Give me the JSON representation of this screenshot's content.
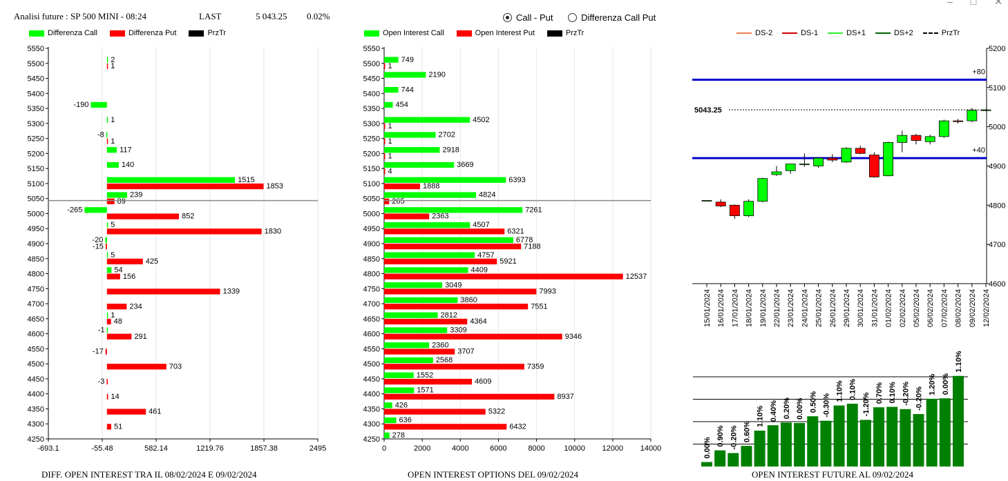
{
  "header": {
    "instrument": "Analisi future : SP 500 MINI - 08:24",
    "last_label": "LAST",
    "last_value": "5 043.25",
    "change": "0.02%"
  },
  "radio": {
    "options": [
      "Call - Put",
      "Differenza Call Put"
    ],
    "selected": "Call - Put"
  },
  "colors": {
    "call": "#00ff00",
    "put": "#ff0000",
    "przTr": "#000000",
    "oi_bar": "#008000",
    "ds_m2": "#f08050",
    "ds_m1": "#cc0000",
    "ds_p1": "#33ee33",
    "ds_p2": "#006400",
    "level_line": "#0000cc"
  },
  "legends": {
    "left": [
      "Differenza Call",
      "Differenza Put",
      "PrzTr"
    ],
    "middle": [
      "Open Interest Call",
      "Open Interest Put",
      "PrzTr"
    ],
    "right": [
      "DS-2",
      "DS-1",
      "DS+1",
      "DS+2",
      "PrzTr"
    ]
  },
  "captions": {
    "left": "DIFF. OPEN INTEREST TRA IL 08/02/2024 E 09/02/2024",
    "middle": "OPEN INTEREST OPTIONS DEL 09/02/2024",
    "right": "OPEN INTEREST FUTURE AL 09/02/2024"
  },
  "chart_data": [
    {
      "type": "bar",
      "orientation": "horizontal",
      "strikes": [
        5550,
        5500,
        5450,
        5400,
        5350,
        5300,
        5250,
        5200,
        5150,
        5100,
        5050,
        5000,
        4950,
        4900,
        4850,
        4800,
        4750,
        4700,
        4650,
        4600,
        4550,
        4500,
        4450,
        4400,
        4350,
        4300,
        4250
      ],
      "series": [
        {
          "name": "Differenza Call",
          "values": [
            null,
            2,
            null,
            null,
            -190,
            1,
            -8,
            117,
            140,
            1515,
            239,
            -265,
            5,
            -20,
            5,
            54,
            null,
            null,
            1,
            -1,
            null,
            null,
            null,
            null,
            null,
            null,
            null
          ]
        },
        {
          "name": "Differenza Put",
          "values": [
            null,
            1,
            null,
            null,
            null,
            null,
            1,
            null,
            null,
            1853,
            89,
            852,
            1830,
            -15,
            425,
            156,
            1339,
            234,
            48,
            291,
            -17,
            703,
            -3,
            14,
            461,
            51,
            null
          ]
        }
      ],
      "price_line": 5043.25,
      "xlim": [
        -693.1,
        2495
      ],
      "xticks": [
        "-693.1",
        "-55.48",
        "582.14",
        "1219.76",
        "1857.38",
        "2495"
      ],
      "ylim": [
        4250,
        5550
      ]
    },
    {
      "type": "bar",
      "orientation": "horizontal",
      "strikes": [
        5550,
        5500,
        5450,
        5400,
        5350,
        5300,
        5250,
        5200,
        5150,
        5100,
        5050,
        5000,
        4950,
        4900,
        4850,
        4800,
        4750,
        4700,
        4650,
        4600,
        4550,
        4500,
        4450,
        4400,
        4350,
        4300,
        4250
      ],
      "series": [
        {
          "name": "Open Interest Call",
          "values": [
            null,
            749,
            2190,
            744,
            454,
            4502,
            2702,
            2918,
            3669,
            6393,
            4824,
            7261,
            4507,
            6778,
            4757,
            4409,
            3049,
            3860,
            2812,
            3309,
            2360,
            2568,
            1552,
            1571,
            426,
            636,
            278
          ]
        },
        {
          "name": "Open Interest Put",
          "values": [
            null,
            1,
            null,
            null,
            null,
            1,
            1,
            1,
            4,
            1888,
            265,
            2363,
            6321,
            7188,
            5921,
            12537,
            7993,
            7551,
            4364,
            9346,
            3707,
            7359,
            4609,
            8937,
            5322,
            6432,
            null
          ]
        }
      ],
      "price_line": 5043.25,
      "xlim": [
        0,
        14000
      ],
      "xticks": [
        "0",
        "2000",
        "4000",
        "6000",
        "8000",
        "10000",
        "12000",
        "14000"
      ],
      "ylim": [
        4250,
        5550
      ]
    },
    {
      "type": "candlestick",
      "dates": [
        "15/01/2024",
        "16/01/2024",
        "17/01/2024",
        "18/01/2024",
        "19/01/2024",
        "22/01/2024",
        "23/01/2024",
        "24/01/2024",
        "25/01/2024",
        "26/01/2024",
        "29/01/2024",
        "30/01/2024",
        "31/01/2024",
        "01/02/2024",
        "02/02/2024",
        "05/02/2024",
        "06/02/2024",
        "07/02/2024",
        "08/02/2024",
        "09/02/2024",
        "12/02/2024"
      ],
      "ohlc": [
        [
          4812,
          4812,
          4812,
          4812
        ],
        [
          4808,
          4815,
          4795,
          4798
        ],
        [
          4800,
          4802,
          4765,
          4773
        ],
        [
          4773,
          4815,
          4770,
          4810
        ],
        [
          4810,
          4870,
          4807,
          4868
        ],
        [
          4878,
          4900,
          4875,
          4885
        ],
        [
          4888,
          4905,
          4880,
          4905
        ],
        [
          4905,
          4932,
          4898,
          4905
        ],
        [
          4900,
          4922,
          4895,
          4920
        ],
        [
          4920,
          4930,
          4910,
          4915
        ],
        [
          4910,
          4948,
          4908,
          4945
        ],
        [
          4945,
          4952,
          4930,
          4932
        ],
        [
          4928,
          4935,
          4870,
          4872
        ],
        [
          4875,
          4962,
          4874,
          4960
        ],
        [
          4960,
          4990,
          4935,
          4978
        ],
        [
          4978,
          4982,
          4955,
          4965
        ],
        [
          4962,
          4980,
          4955,
          4975
        ],
        [
          4975,
          5018,
          4972,
          5015
        ],
        [
          5015,
          5020,
          5008,
          5013
        ],
        [
          5015,
          5048,
          5012,
          5042
        ],
        [
          5043,
          5045,
          5040,
          5043
        ]
      ],
      "price_line": 5043.25,
      "price_label": "5043.25",
      "levels": [
        {
          "value": 5120,
          "label": "+80"
        },
        {
          "value": 4920,
          "label": "+40"
        }
      ],
      "ylim": [
        4600,
        5200
      ],
      "yticks": [
        "5200",
        "5100",
        "5000",
        "4900",
        "4800",
        "4700",
        "4600"
      ]
    },
    {
      "type": "bar",
      "title": "",
      "values": [
        1.0,
        3.6,
        3.0,
        4.6,
        8.0,
        9.2,
        9.8,
        9.7,
        11.2,
        10.2,
        13.6,
        14.0,
        10.4,
        13.2,
        13.3,
        12.8,
        11.7,
        15.1,
        15.2,
        20.2
      ],
      "labels": [
        "0.00%",
        "0.90%",
        "-0.20%",
        "0.60%",
        "1.10%",
        "0.40%",
        "0.20%",
        "0.00%",
        "0.50%",
        "-0.30%",
        "1.10%",
        "0.10%",
        "-1.20%",
        "0.70%",
        "0.10%",
        "-0.20%",
        "-0.20%",
        "1.20%",
        "0.00%",
        "1.10%"
      ],
      "ylim": [
        0,
        24
      ]
    }
  ]
}
